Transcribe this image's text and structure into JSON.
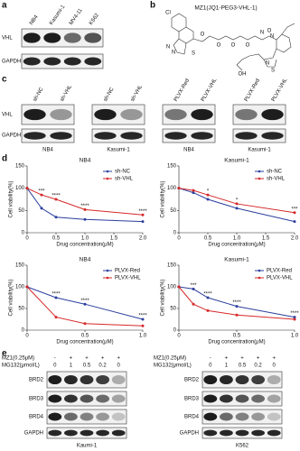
{
  "panels": {
    "a": {
      "label": "a",
      "columns": [
        "NB4",
        "Kasumi-1",
        "MV4-11",
        "K562"
      ],
      "rows": [
        "VHL",
        "GAPDH"
      ]
    },
    "b": {
      "label": "b",
      "title": "MZ1(JQ1-PEG3-VHL-1)",
      "atoms": [
        "Cl",
        "N",
        "N",
        "S",
        "O",
        "O",
        "O",
        "O",
        "N",
        "O",
        "OH",
        "N",
        "S",
        "N"
      ]
    },
    "c": {
      "label": "c",
      "rows": [
        "VHL",
        "GAPDH"
      ],
      "groups": [
        {
          "columns": [
            "sh-NC",
            "sh-VHL"
          ],
          "cell": "NB4"
        },
        {
          "columns": [
            "sh-NC",
            "sh-VHL"
          ],
          "cell": "Kasumi-1"
        },
        {
          "columns": [
            "PLVX-Red",
            "PLVX-VHL"
          ],
          "cell": "NB4"
        },
        {
          "columns": [
            "PLVX-Red",
            "PLVX-VHL"
          ],
          "cell": "Kasumi-1"
        }
      ]
    },
    "d": {
      "label": "d"
    },
    "e": {
      "label": "e",
      "blots": [
        {
          "treatments": [
            {
              "name": "MZ1(0.25μM)",
              "values": [
                "-",
                "+",
                "+",
                "+",
                "+"
              ]
            },
            {
              "name": "MG132(μmol/L)",
              "values": [
                "0",
                "1",
                "0.5",
                "0.2",
                "0"
              ]
            }
          ],
          "rows": [
            "BRD2",
            "BRD3",
            "BRD4",
            "GAPDH"
          ],
          "cell": "Kaumi-1"
        },
        {
          "treatments": [
            {
              "name": "MZ1(0.25μM)",
              "values": [
                "-",
                "+",
                "+",
                "+",
                "+"
              ]
            },
            {
              "name": "MG132(μmol/L)",
              "values": [
                "0",
                "1",
                "0.5",
                "0.2",
                "0"
              ]
            }
          ],
          "rows": [
            "BRD2",
            "BRD3",
            "BRD4",
            "GAPDH"
          ],
          "cell": "K562"
        }
      ]
    }
  },
  "chart_data": [
    {
      "type": "line",
      "title": "NB4",
      "xlabel": "Drug concentration(μM)",
      "ylabel": "Cell viability(%)",
      "x": [
        0,
        0.25,
        0.5,
        1,
        2
      ],
      "xlim": [
        0,
        2
      ],
      "xticks": [
        0,
        0.5,
        {
          "value": 1,
          "label": "1.0"
        },
        1.5,
        {
          "value": 2,
          "label": "2.0"
        }
      ],
      "ylim": [
        0,
        150
      ],
      "yticks": [
        0,
        50,
        100,
        150
      ],
      "legend": "upper right",
      "series": [
        {
          "name": "sh-NC",
          "color": "#2b3f9e",
          "values": [
            100,
            55,
            35,
            30,
            25
          ]
        },
        {
          "name": "sh-VHL",
          "color": "#d62728",
          "values": [
            100,
            85,
            75,
            52,
            40
          ]
        }
      ],
      "annotations": [
        null,
        "***",
        "****",
        "****",
        "****"
      ]
    },
    {
      "type": "line",
      "title": "Kasumi-1",
      "xlabel": "Drug concentration(μM)",
      "ylabel": "Cell viability(%)",
      "x": [
        0,
        0.25,
        0.5,
        1,
        2
      ],
      "xlim": [
        0,
        2
      ],
      "xticks": [
        0,
        0.5,
        {
          "value": 1,
          "label": "1.0"
        },
        1.5,
        {
          "value": 2,
          "label": "2.0"
        }
      ],
      "ylim": [
        0,
        150
      ],
      "yticks": [
        0,
        50,
        100,
        150
      ],
      "legend": "upper right",
      "series": [
        {
          "name": "sh-NC",
          "color": "#2b3f9e",
          "values": [
            100,
            90,
            75,
            55,
            25
          ]
        },
        {
          "name": "sh-VHL",
          "color": "#d62728",
          "values": [
            100,
            95,
            85,
            65,
            45
          ]
        }
      ],
      "annotations": [
        null,
        null,
        "*",
        "*",
        "***"
      ]
    },
    {
      "type": "line",
      "title": "NB4",
      "xlabel": "Drug concentration(μM)",
      "ylabel": "Cell viability(%)",
      "x": [
        0,
        0.25,
        0.5,
        1
      ],
      "xlim": [
        0,
        1
      ],
      "xticks": [
        0,
        0.5,
        {
          "value": 1,
          "label": "1.0"
        }
      ],
      "ylim": [
        0,
        150
      ],
      "yticks": [
        0,
        50,
        100,
        150
      ],
      "legend": "upper right",
      "series": [
        {
          "name": "PLVX-Red",
          "color": "#2b3f9e",
          "values": [
            100,
            75,
            60,
            25
          ]
        },
        {
          "name": "PLVX-VHL",
          "color": "#d62728",
          "values": [
            100,
            30,
            15,
            10
          ]
        }
      ],
      "annotations": [
        null,
        "****",
        "****",
        "****"
      ]
    },
    {
      "type": "line",
      "title": "Kasumi-1",
      "xlabel": "Drug concentration(μM)",
      "ylabel": "Cell viability(%)",
      "x": [
        0,
        0.125,
        0.25,
        0.5,
        1
      ],
      "xlim": [
        0,
        1
      ],
      "xticks": [
        0,
        0.5,
        {
          "value": 1,
          "label": "1.0"
        }
      ],
      "ylim": [
        0,
        150
      ],
      "yticks": [
        0,
        50,
        100,
        150
      ],
      "legend": "upper right",
      "series": [
        {
          "name": "PLVX-Red",
          "color": "#2b3f9e",
          "values": [
            100,
            95,
            75,
            55,
            30
          ]
        },
        {
          "name": "PLVX-VHL",
          "color": "#d62728",
          "values": [
            100,
            60,
            45,
            35,
            25
          ]
        }
      ],
      "annotations": [
        null,
        "***",
        "****",
        "****",
        "****"
      ]
    }
  ]
}
